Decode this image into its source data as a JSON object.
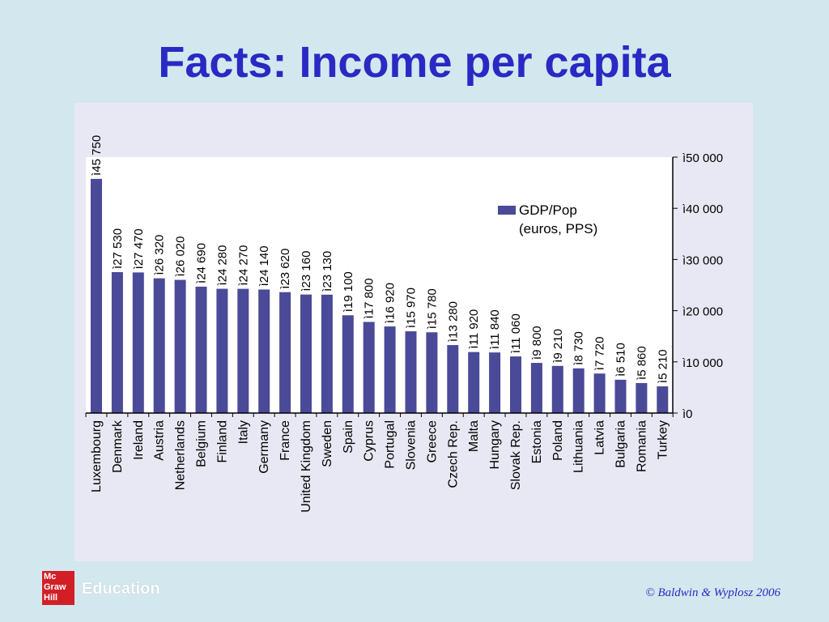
{
  "slide": {
    "title": "Facts: Income per capita",
    "copyright": "© Baldwin & Wyplosz 2006",
    "logo_lines": [
      "Mc",
      "Graw",
      "Hill"
    ],
    "logo_text": "Education"
  },
  "chart_data": {
    "type": "bar",
    "categories": [
      "Luxembourg",
      "Denmark",
      "Ireland",
      "Austria",
      "Netherlands",
      "Belgium",
      "Finland",
      "Italy",
      "Germany",
      "France",
      "United Kingdom",
      "Sweden",
      "Spain",
      "Cyprus",
      "Portugal",
      "Slovenia",
      "Greece",
      "Czech Rep.",
      "Malta",
      "Hungary",
      "Slovak Rep.",
      "Estonia",
      "Poland",
      "Lithuania",
      "Latvia",
      "Bulgaria",
      "Romania",
      "Turkey"
    ],
    "series": [
      {
        "name": "GDP/Pop\n(euros, PPS)",
        "values": [
          45750,
          27530,
          27470,
          26320,
          26020,
          24690,
          24280,
          24270,
          24140,
          23620,
          23160,
          23130,
          19100,
          17800,
          16920,
          15970,
          15780,
          13280,
          11920,
          11840,
          11060,
          9800,
          9210,
          8730,
          7720,
          6510,
          5860,
          5210
        ]
      }
    ],
    "value_labels": [
      "ì45 750",
      "ì27 530",
      "ì27 470",
      "ì26 320",
      "ì26 020",
      "ì24 690",
      "ì24 280",
      "ì24 270",
      "ì24 140",
      "ì23 620",
      "ì23 160",
      "ì23 130",
      "ì19 100",
      "ì17 800",
      "ì16 920",
      "ì15 970",
      "ì15 780",
      "ì13 280",
      "ì11 920",
      "ì11 840",
      "ì11 060",
      "ì9 800",
      "ì9 210",
      "ì8 730",
      "ì7 720",
      "ì6 510",
      "ì5 860",
      "ì5 210"
    ],
    "y_ticks": [
      0,
      10000,
      20000,
      30000,
      40000,
      50000
    ],
    "y_tick_labels": [
      "ì0",
      "ì10 000",
      "ì20 000",
      "ì30 000",
      "ì40 000",
      "ì50 000"
    ],
    "ylim": [
      0,
      50000
    ],
    "y_axis_side": "right",
    "legend": {
      "entries": [
        "GDP/Pop",
        "(euros, PPS)"
      ],
      "placement": "top-right"
    },
    "title": "",
    "xlabel": "",
    "ylabel": "",
    "grid": false,
    "colors": {
      "bar": "#4a4a98",
      "plot_bg": "#ffffff",
      "panel_bg": "#e8e8f4",
      "text": "#000000"
    }
  }
}
